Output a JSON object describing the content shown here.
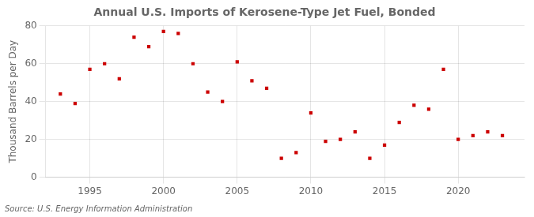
{
  "chart_data": {
    "type": "scatter",
    "title": "Annual U.S. Imports of Kerosene-Type Jet Fuel, Bonded",
    "ylabel": "Thousand Barrels per Day",
    "source": "Source: U.S. Energy Information Administration",
    "x": [
      1993,
      1994,
      1995,
      1996,
      1997,
      1998,
      1999,
      2000,
      2001,
      2002,
      2003,
      2004,
      2005,
      2006,
      2007,
      2008,
      2009,
      2010,
      2011,
      2012,
      2013,
      2014,
      2015,
      2016,
      2017,
      2018,
      2019,
      2020,
      2021,
      2022,
      2023
    ],
    "values": [
      44,
      39,
      57,
      60,
      52,
      74,
      69,
      77,
      76,
      60,
      45,
      40,
      61,
      51,
      47,
      10,
      13,
      34,
      19,
      20,
      24,
      10,
      17,
      29,
      38,
      36,
      57,
      20,
      22,
      24,
      22
    ],
    "color": "#cc0000",
    "marker": "square",
    "xlim": [
      1992,
      2024.5
    ],
    "xticks": [
      1995,
      2000,
      2005,
      2010,
      2015,
      2020
    ],
    "ylim": [
      0,
      80
    ],
    "yticks": [
      0,
      20,
      40,
      60,
      80
    ],
    "grid": true
  }
}
